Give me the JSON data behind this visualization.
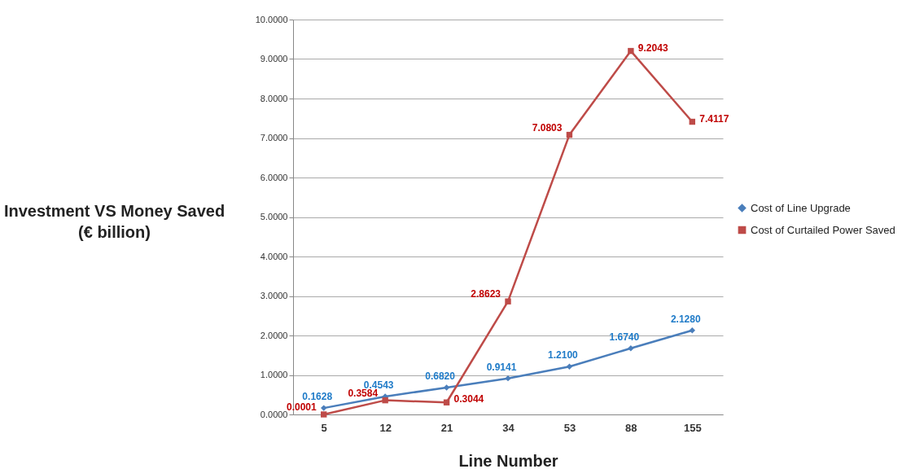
{
  "chart_data": {
    "type": "line",
    "xlabel": "Line Number",
    "ylabel": "Investment VS Money Saved\n(€ billion)",
    "categories": [
      "5",
      "12",
      "21",
      "34",
      "53",
      "88",
      "155"
    ],
    "series": [
      {
        "name": "Cost of Line Upgrade",
        "color": "#4a7ebb",
        "marker": "diamond",
        "values": [
          0.1628,
          0.4543,
          0.682,
          0.9141,
          1.21,
          1.674,
          2.128
        ],
        "value_labels": [
          "0.1628",
          "0.4543",
          "0.6820",
          "0.9141",
          "1.2100",
          "1.6740",
          "2.1280"
        ]
      },
      {
        "name": "Cost of Curtailed Power Saved",
        "color": "#be4b48",
        "marker": "square",
        "values": [
          0.0001,
          0.3584,
          0.3044,
          2.8623,
          7.0803,
          9.2043,
          7.4117
        ],
        "value_labels": [
          "0.0001",
          "0.3584",
          "0.3044",
          "2.8623",
          "7.0803",
          "9.2043",
          "7.4117"
        ]
      }
    ],
    "ylim": [
      0,
      10
    ],
    "yticks": [
      {
        "value": 0,
        "label": "0.0000"
      },
      {
        "value": 1,
        "label": "1.0000"
      },
      {
        "value": 2,
        "label": "2.0000"
      },
      {
        "value": 3,
        "label": "3.0000"
      },
      {
        "value": 4,
        "label": "4.0000"
      },
      {
        "value": 5,
        "label": "5.0000"
      },
      {
        "value": 6,
        "label": "6.0000"
      },
      {
        "value": 7,
        "label": "7.0000"
      },
      {
        "value": 8,
        "label": "8.0000"
      },
      {
        "value": 9,
        "label": "9.0000"
      },
      {
        "value": 10,
        "label": "10.0000"
      }
    ],
    "grid": "y",
    "legend": "right"
  }
}
